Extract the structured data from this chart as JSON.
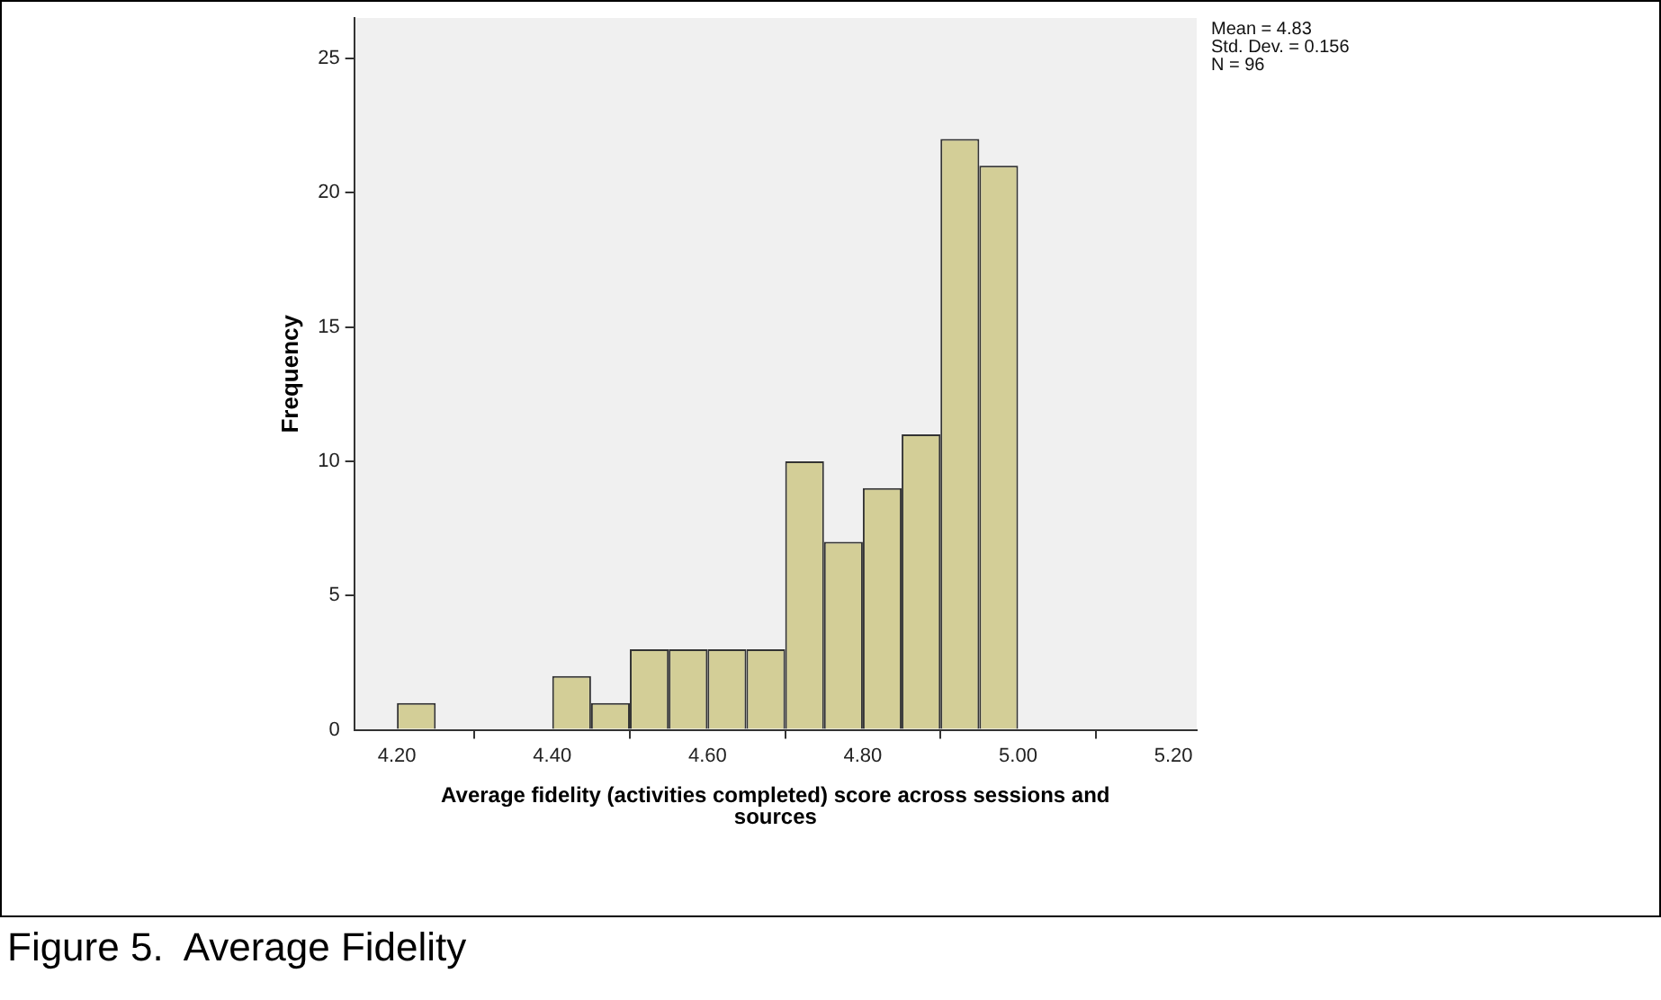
{
  "chart_data": {
    "type": "histogram",
    "xlabel": "Average fidelity (activities completed) score across sessions and sources",
    "ylabel": "Frequency",
    "bins": [
      4.2,
      4.25,
      4.3,
      4.35,
      4.4,
      4.45,
      4.5,
      4.55,
      4.6,
      4.65,
      4.7,
      4.75,
      4.8,
      4.85,
      4.9,
      4.95,
      5.0
    ],
    "values": [
      1,
      0,
      0,
      0,
      2,
      1,
      3,
      3,
      3,
      3,
      10,
      7,
      9,
      11,
      22,
      21
    ],
    "color": "#d3ce97",
    "xlim": [
      4.145,
      5.23
    ],
    "xticks": [
      {
        "value": 4.2,
        "label": "4.20"
      },
      {
        "value": 4.4,
        "label": "4.40"
      },
      {
        "value": 4.6,
        "label": "4.60"
      },
      {
        "value": 4.8,
        "label": "4.80"
      },
      {
        "value": 5.0,
        "label": "5.00"
      },
      {
        "value": 5.2,
        "label": "5.20"
      }
    ],
    "ylim": [
      0,
      26.5
    ],
    "yticks": [
      0,
      5,
      10,
      15,
      20,
      25
    ],
    "grid": false,
    "legend": false,
    "annotations": [
      "Mean = 4.83",
      "Std. Dev. = 0.156",
      "N = 96",
      "Figure 5.  Average Fidelity"
    ]
  }
}
